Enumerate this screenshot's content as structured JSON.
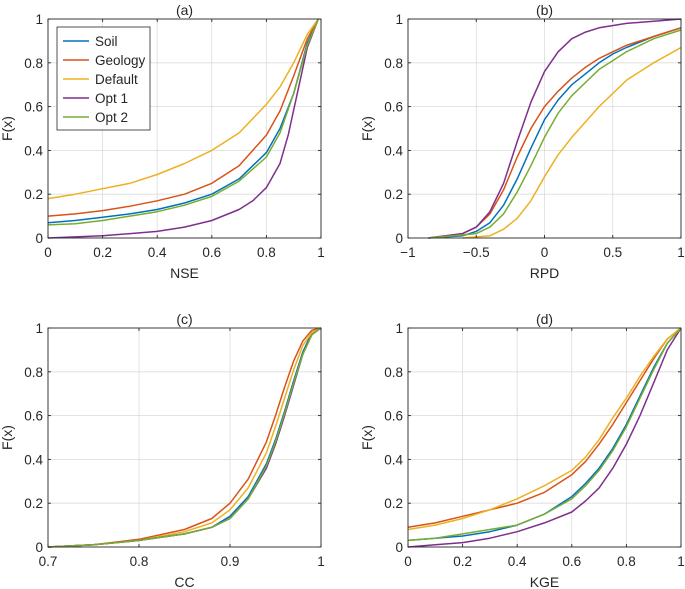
{
  "figure": {
    "legend": [
      "Soil",
      "Geology",
      "Default",
      "Opt 1",
      "Opt 2"
    ]
  },
  "chart_data": [
    {
      "type": "line",
      "title": "(a)",
      "xlabel": "NSE",
      "ylabel": "F(x)",
      "xlim": [
        0,
        1
      ],
      "ylim": [
        0,
        1
      ],
      "xticks": [
        0,
        0.2,
        0.4,
        0.6,
        0.8,
        1
      ],
      "xtick_labels": [
        "0",
        "0.2",
        "0.4",
        "0.6",
        "0.8",
        "1"
      ],
      "yticks": [
        0,
        0.2,
        0.4,
        0.6,
        0.8,
        1
      ],
      "ytick_labels": [
        "0",
        "0.2",
        "0.4",
        "0.6",
        "0.8",
        "1"
      ],
      "grid": true,
      "legend_position": "top-left",
      "series": [
        {
          "name": "Soil",
          "color": "#0072BD",
          "x": [
            0,
            0.1,
            0.2,
            0.3,
            0.4,
            0.5,
            0.6,
            0.7,
            0.8,
            0.85,
            0.9,
            0.95,
            0.99
          ],
          "y": [
            0.07,
            0.08,
            0.095,
            0.11,
            0.13,
            0.16,
            0.2,
            0.27,
            0.39,
            0.5,
            0.66,
            0.89,
            1.0
          ]
        },
        {
          "name": "Geology",
          "color": "#D95319",
          "x": [
            0,
            0.1,
            0.2,
            0.3,
            0.4,
            0.5,
            0.6,
            0.7,
            0.8,
            0.85,
            0.9,
            0.95,
            0.99
          ],
          "y": [
            0.1,
            0.11,
            0.125,
            0.145,
            0.17,
            0.2,
            0.25,
            0.33,
            0.47,
            0.58,
            0.74,
            0.91,
            1.0
          ]
        },
        {
          "name": "Default",
          "color": "#EDB120",
          "x": [
            0,
            0.1,
            0.2,
            0.3,
            0.4,
            0.5,
            0.6,
            0.7,
            0.8,
            0.85,
            0.9,
            0.95,
            0.99
          ],
          "y": [
            0.18,
            0.2,
            0.225,
            0.25,
            0.29,
            0.34,
            0.4,
            0.48,
            0.61,
            0.69,
            0.8,
            0.93,
            1.0
          ]
        },
        {
          "name": "Opt 1",
          "color": "#7E2F8E",
          "x": [
            0,
            0.2,
            0.4,
            0.5,
            0.6,
            0.7,
            0.75,
            0.8,
            0.85,
            0.88,
            0.92,
            0.95,
            0.99
          ],
          "y": [
            0.0,
            0.01,
            0.03,
            0.05,
            0.08,
            0.13,
            0.17,
            0.23,
            0.34,
            0.47,
            0.7,
            0.87,
            1.0
          ]
        },
        {
          "name": "Opt 2",
          "color": "#77AC30",
          "x": [
            0,
            0.1,
            0.2,
            0.3,
            0.4,
            0.5,
            0.6,
            0.7,
            0.8,
            0.85,
            0.9,
            0.95,
            0.99
          ],
          "y": [
            0.06,
            0.065,
            0.08,
            0.1,
            0.12,
            0.15,
            0.19,
            0.26,
            0.37,
            0.48,
            0.66,
            0.88,
            1.0
          ]
        }
      ]
    },
    {
      "type": "line",
      "title": "(b)",
      "xlabel": "RPD",
      "ylabel": "F(x)",
      "xlim": [
        -1,
        1
      ],
      "ylim": [
        0,
        1
      ],
      "xticks": [
        -1,
        -0.5,
        0,
        0.5,
        1
      ],
      "xtick_labels": [
        "−1",
        "−0.5",
        "0",
        "0.5",
        "1"
      ],
      "yticks": [
        0,
        0.2,
        0.4,
        0.6,
        0.8,
        1
      ],
      "ytick_labels": [
        "0",
        "0.2",
        "0.4",
        "0.6",
        "0.8",
        "1"
      ],
      "grid": true,
      "series": [
        {
          "name": "Soil",
          "color": "#0072BD",
          "x": [
            -0.85,
            -0.6,
            -0.5,
            -0.4,
            -0.3,
            -0.2,
            -0.1,
            0,
            0.1,
            0.2,
            0.3,
            0.4,
            0.5,
            0.6,
            0.8,
            1.0
          ],
          "y": [
            0.0,
            0.01,
            0.03,
            0.07,
            0.15,
            0.27,
            0.41,
            0.54,
            0.63,
            0.7,
            0.75,
            0.8,
            0.84,
            0.87,
            0.92,
            0.96
          ]
        },
        {
          "name": "Geology",
          "color": "#D95319",
          "x": [
            -0.85,
            -0.6,
            -0.5,
            -0.4,
            -0.3,
            -0.2,
            -0.1,
            0,
            0.1,
            0.2,
            0.3,
            0.4,
            0.5,
            0.6,
            0.8,
            1.0
          ],
          "y": [
            0.0,
            0.02,
            0.05,
            0.11,
            0.22,
            0.37,
            0.5,
            0.6,
            0.67,
            0.73,
            0.78,
            0.82,
            0.85,
            0.88,
            0.92,
            0.96
          ]
        },
        {
          "name": "Default",
          "color": "#EDB120",
          "x": [
            -0.6,
            -0.4,
            -0.3,
            -0.2,
            -0.1,
            0,
            0.1,
            0.2,
            0.3,
            0.4,
            0.5,
            0.6,
            0.8,
            1.0
          ],
          "y": [
            0.0,
            0.01,
            0.04,
            0.09,
            0.17,
            0.28,
            0.38,
            0.46,
            0.53,
            0.6,
            0.66,
            0.72,
            0.8,
            0.87
          ]
        },
        {
          "name": "Opt 1",
          "color": "#7E2F8E",
          "x": [
            -0.85,
            -0.6,
            -0.5,
            -0.4,
            -0.3,
            -0.2,
            -0.1,
            0,
            0.1,
            0.2,
            0.3,
            0.4,
            0.6,
            0.8,
            1.0
          ],
          "y": [
            0.0,
            0.02,
            0.05,
            0.12,
            0.25,
            0.44,
            0.62,
            0.76,
            0.85,
            0.91,
            0.94,
            0.96,
            0.98,
            0.99,
            1.0
          ]
        },
        {
          "name": "Opt 2",
          "color": "#77AC30",
          "x": [
            -0.85,
            -0.5,
            -0.4,
            -0.3,
            -0.2,
            -0.1,
            0,
            0.1,
            0.2,
            0.3,
            0.4,
            0.5,
            0.6,
            0.8,
            1.0
          ],
          "y": [
            0.0,
            0.02,
            0.05,
            0.11,
            0.21,
            0.33,
            0.46,
            0.57,
            0.65,
            0.71,
            0.77,
            0.81,
            0.85,
            0.91,
            0.95
          ]
        }
      ]
    },
    {
      "type": "line",
      "title": "(c)",
      "xlabel": "CC",
      "ylabel": "F(x)",
      "xlim": [
        0.7,
        1
      ],
      "ylim": [
        0,
        1
      ],
      "xticks": [
        0.7,
        0.8,
        0.9,
        1
      ],
      "xtick_labels": [
        "0.7",
        "0.8",
        "0.9",
        "1"
      ],
      "yticks": [
        0,
        0.2,
        0.4,
        0.6,
        0.8,
        1
      ],
      "ytick_labels": [
        "0",
        "0.2",
        "0.4",
        "0.6",
        "0.8",
        "1"
      ],
      "grid": true,
      "series": [
        {
          "name": "Soil",
          "color": "#0072BD",
          "x": [
            0.7,
            0.75,
            0.8,
            0.85,
            0.88,
            0.9,
            0.92,
            0.94,
            0.95,
            0.96,
            0.97,
            0.98,
            0.99,
            1.0
          ],
          "y": [
            0.0,
            0.01,
            0.03,
            0.06,
            0.09,
            0.14,
            0.23,
            0.38,
            0.49,
            0.62,
            0.76,
            0.89,
            0.98,
            1.0
          ]
        },
        {
          "name": "Geology",
          "color": "#D95319",
          "x": [
            0.7,
            0.75,
            0.8,
            0.85,
            0.88,
            0.9,
            0.92,
            0.94,
            0.95,
            0.96,
            0.97,
            0.98,
            0.99,
            1.0
          ],
          "y": [
            0.0,
            0.01,
            0.035,
            0.08,
            0.13,
            0.2,
            0.31,
            0.48,
            0.6,
            0.73,
            0.85,
            0.94,
            0.99,
            1.0
          ]
        },
        {
          "name": "Default",
          "color": "#EDB120",
          "x": [
            0.7,
            0.75,
            0.8,
            0.85,
            0.88,
            0.9,
            0.92,
            0.94,
            0.95,
            0.96,
            0.97,
            0.98,
            0.99,
            1.0
          ],
          "y": [
            0.0,
            0.01,
            0.03,
            0.07,
            0.11,
            0.17,
            0.27,
            0.43,
            0.55,
            0.68,
            0.81,
            0.92,
            0.98,
            1.0
          ]
        },
        {
          "name": "Opt 1",
          "color": "#7E2F8E",
          "x": [
            0.7,
            0.75,
            0.8,
            0.85,
            0.88,
            0.9,
            0.92,
            0.94,
            0.95,
            0.96,
            0.97,
            0.98,
            0.99,
            1.0
          ],
          "y": [
            0.0,
            0.01,
            0.03,
            0.06,
            0.09,
            0.13,
            0.22,
            0.36,
            0.47,
            0.6,
            0.74,
            0.88,
            0.97,
            1.0
          ]
        },
        {
          "name": "Opt 2",
          "color": "#77AC30",
          "x": [
            0.7,
            0.75,
            0.8,
            0.85,
            0.88,
            0.9,
            0.92,
            0.94,
            0.95,
            0.96,
            0.97,
            0.98,
            0.99,
            1.0
          ],
          "y": [
            0.0,
            0.01,
            0.03,
            0.06,
            0.09,
            0.13,
            0.22,
            0.37,
            0.48,
            0.61,
            0.75,
            0.88,
            0.97,
            1.0
          ]
        }
      ]
    },
    {
      "type": "line",
      "title": "(d)",
      "xlabel": "KGE",
      "ylabel": "F(x)",
      "xlim": [
        0,
        1
      ],
      "ylim": [
        0,
        1
      ],
      "xticks": [
        0,
        0.2,
        0.4,
        0.6,
        0.8,
        1
      ],
      "xtick_labels": [
        "0",
        "0.2",
        "0.4",
        "0.6",
        "0.8",
        "1"
      ],
      "yticks": [
        0,
        0.2,
        0.4,
        0.6,
        0.8,
        1
      ],
      "ytick_labels": [
        "0",
        "0.2",
        "0.4",
        "0.6",
        "0.8",
        "1"
      ],
      "grid": true,
      "series": [
        {
          "name": "Soil",
          "color": "#0072BD",
          "x": [
            0,
            0.1,
            0.2,
            0.3,
            0.4,
            0.5,
            0.6,
            0.65,
            0.7,
            0.75,
            0.8,
            0.85,
            0.9,
            0.95,
            1.0
          ],
          "y": [
            0.03,
            0.04,
            0.05,
            0.07,
            0.1,
            0.15,
            0.23,
            0.29,
            0.36,
            0.45,
            0.56,
            0.69,
            0.82,
            0.93,
            1.0
          ]
        },
        {
          "name": "Geology",
          "color": "#D95319",
          "x": [
            0,
            0.1,
            0.2,
            0.3,
            0.4,
            0.5,
            0.6,
            0.65,
            0.7,
            0.75,
            0.8,
            0.85,
            0.9,
            0.95,
            1.0
          ],
          "y": [
            0.09,
            0.11,
            0.14,
            0.17,
            0.2,
            0.25,
            0.33,
            0.39,
            0.47,
            0.56,
            0.66,
            0.76,
            0.86,
            0.95,
            1.0
          ]
        },
        {
          "name": "Default",
          "color": "#EDB120",
          "x": [
            0,
            0.1,
            0.2,
            0.3,
            0.4,
            0.5,
            0.6,
            0.65,
            0.7,
            0.75,
            0.8,
            0.85,
            0.9,
            0.95,
            1.0
          ],
          "y": [
            0.08,
            0.1,
            0.13,
            0.17,
            0.22,
            0.28,
            0.35,
            0.41,
            0.49,
            0.59,
            0.68,
            0.78,
            0.87,
            0.95,
            1.0
          ]
        },
        {
          "name": "Opt 1",
          "color": "#7E2F8E",
          "x": [
            0,
            0.1,
            0.2,
            0.3,
            0.4,
            0.5,
            0.6,
            0.65,
            0.7,
            0.75,
            0.8,
            0.85,
            0.9,
            0.95,
            1.0
          ],
          "y": [
            0.0,
            0.01,
            0.02,
            0.04,
            0.07,
            0.11,
            0.16,
            0.21,
            0.27,
            0.36,
            0.47,
            0.6,
            0.75,
            0.9,
            1.0
          ]
        },
        {
          "name": "Opt 2",
          "color": "#77AC30",
          "x": [
            0,
            0.1,
            0.2,
            0.3,
            0.4,
            0.5,
            0.6,
            0.65,
            0.7,
            0.75,
            0.8,
            0.85,
            0.9,
            0.95,
            1.0
          ],
          "y": [
            0.03,
            0.04,
            0.06,
            0.08,
            0.1,
            0.15,
            0.22,
            0.28,
            0.35,
            0.44,
            0.55,
            0.68,
            0.81,
            0.93,
            1.0
          ]
        }
      ]
    }
  ]
}
